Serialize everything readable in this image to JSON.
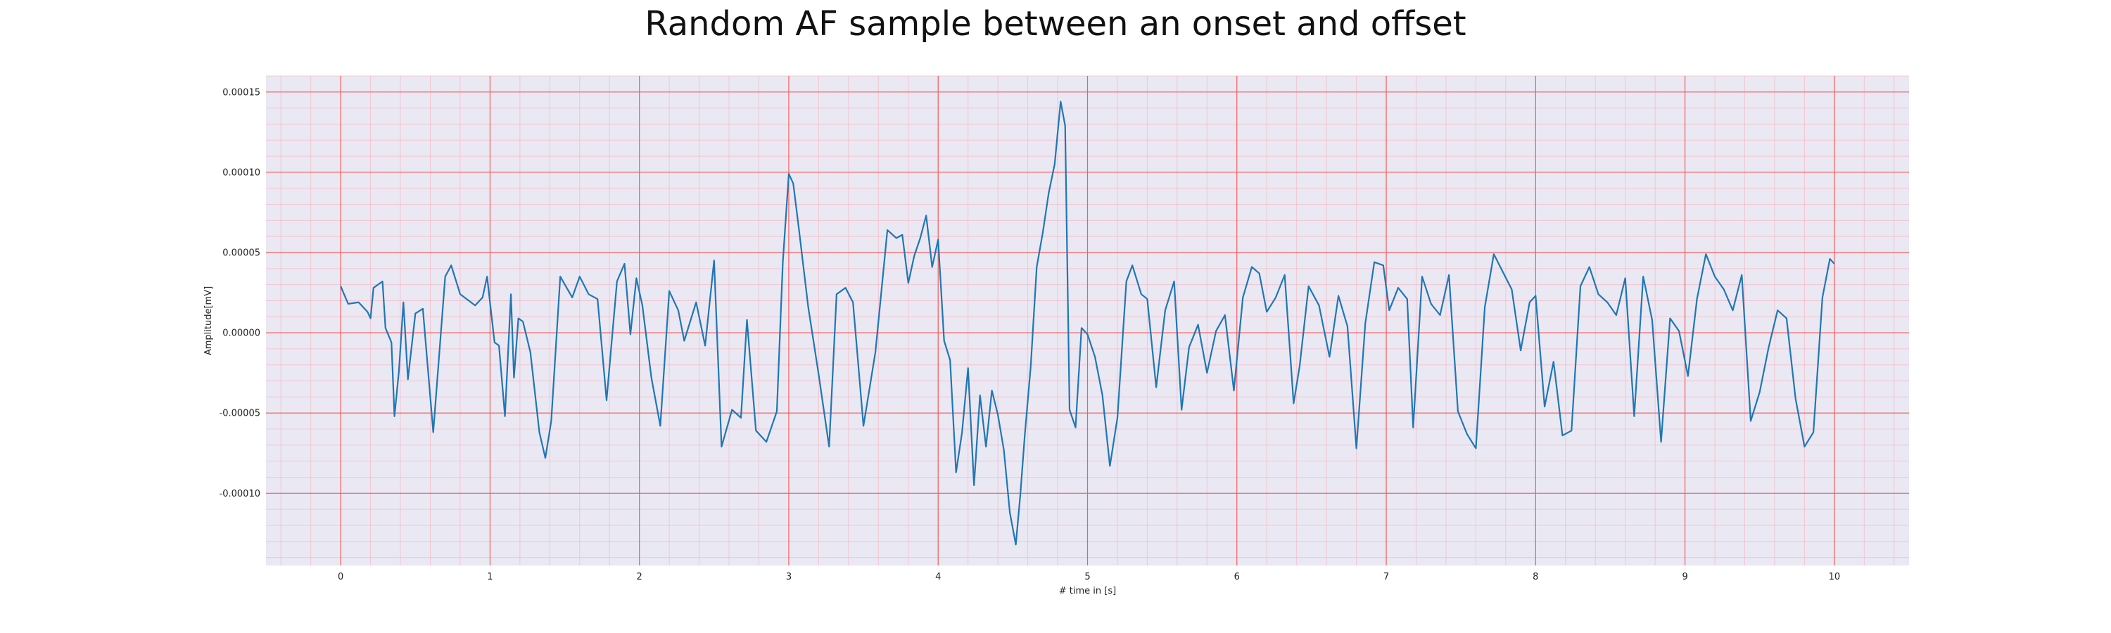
{
  "chart_data": {
    "type": "line",
    "title": "Random AF sample between an onset and offset",
    "xlabel": "# time in [s]",
    "ylabel": "Amplitude[mV]",
    "xlim": [
      -0.5,
      10.5
    ],
    "ylim": [
      -0.000145,
      0.00016
    ],
    "x_ticks": [
      0,
      1,
      2,
      3,
      4,
      5,
      6,
      7,
      8,
      9,
      10
    ],
    "x_tick_labels": [
      "0",
      "1",
      "2",
      "3",
      "4",
      "5",
      "6",
      "7",
      "8",
      "9",
      "10"
    ],
    "y_ticks": [
      -0.0001,
      -5e-05,
      0,
      5e-05,
      0.0001,
      0.00015
    ],
    "y_tick_labels": [
      "-0.00010",
      "-0.00005",
      "0.00000",
      "0.00005",
      "0.00010",
      "0.00015"
    ],
    "grid": true,
    "minor_grid": true,
    "colors": {
      "plot_background": "#eae8f3",
      "major_grid": "#f06060",
      "minor_grid": "#f5b8c4",
      "line": "#1f77b4"
    },
    "series": [
      {
        "x": [
          0.0,
          0.05,
          0.12,
          0.18,
          0.2,
          0.22,
          0.28,
          0.3,
          0.34,
          0.36,
          0.39,
          0.42,
          0.45,
          0.5,
          0.55,
          0.62,
          0.7,
          0.74,
          0.8,
          0.9,
          0.95,
          0.98,
          1.03,
          1.06,
          1.1,
          1.14,
          1.16,
          1.19,
          1.22,
          1.27,
          1.33,
          1.37,
          1.41,
          1.47,
          1.55,
          1.6,
          1.66,
          1.72,
          1.78,
          1.85,
          1.9,
          1.94,
          1.98,
          2.02,
          2.08,
          2.14,
          2.2,
          2.26,
          2.3,
          2.38,
          2.44,
          2.5,
          2.55,
          2.62,
          2.68,
          2.72,
          2.78,
          2.85,
          2.92,
          2.96,
          3.0,
          3.03,
          3.07,
          3.13,
          3.2,
          3.27,
          3.32,
          3.38,
          3.43,
          3.5,
          3.58,
          3.66,
          3.72,
          3.76,
          3.8,
          3.84,
          3.88,
          3.92,
          3.96,
          4.0,
          4.04,
          4.08,
          4.12,
          4.16,
          4.2,
          4.24,
          4.28,
          4.32,
          4.36,
          4.4,
          4.44,
          4.48,
          4.52,
          4.55,
          4.58,
          4.62,
          4.66,
          4.7,
          4.74,
          4.78,
          4.82,
          4.85,
          4.88,
          4.92,
          4.96,
          5.0,
          5.05,
          5.1,
          5.15,
          5.2,
          5.26,
          5.3,
          5.36,
          5.4,
          5.46,
          5.52,
          5.58,
          5.63,
          5.68,
          5.74,
          5.8,
          5.86,
          5.92,
          5.98,
          6.04,
          6.1,
          6.15,
          6.2,
          6.26,
          6.32,
          6.38,
          6.42,
          6.48,
          6.55,
          6.62,
          6.68,
          6.74,
          6.8,
          6.86,
          6.92,
          6.98,
          7.02,
          7.08,
          7.14,
          7.18,
          7.24,
          7.3,
          7.36,
          7.42,
          7.48,
          7.54,
          7.6,
          7.66,
          7.72,
          7.78,
          7.84,
          7.9,
          7.96,
          8.0,
          8.06,
          8.12,
          8.18,
          8.24,
          8.3,
          8.36,
          8.42,
          8.48,
          8.54,
          8.6,
          8.66,
          8.72,
          8.78,
          8.84,
          8.9,
          8.96,
          9.02,
          9.08,
          9.14,
          9.2,
          9.26,
          9.32,
          9.38,
          9.44,
          9.5,
          9.56,
          9.62,
          9.68,
          9.74,
          9.8,
          9.86,
          9.92,
          9.97,
          10.0
        ],
        "y": [
          2.9e-05,
          1.8e-05,
          1.9e-05,
          1.3e-05,
          9e-06,
          2.8e-05,
          3.2e-05,
          3e-06,
          -6e-06,
          -5.2e-05,
          -2.4e-05,
          1.9e-05,
          -2.9e-05,
          1.2e-05,
          1.5e-05,
          -6.2e-05,
          3.5e-05,
          4.2e-05,
          2.4e-05,
          1.7e-05,
          2.2e-05,
          3.5e-05,
          -6e-06,
          -8e-06,
          -5.2e-05,
          2.4e-05,
          -2.8e-05,
          9e-06,
          7e-06,
          -1.2e-05,
          -6.2e-05,
          -7.8e-05,
          -5.5e-05,
          3.5e-05,
          2.2e-05,
          3.5e-05,
          2.4e-05,
          2.1e-05,
          -4.2e-05,
          3.2e-05,
          4.3e-05,
          -1e-06,
          3.4e-05,
          1.7e-05,
          -2.8e-05,
          -5.8e-05,
          2.6e-05,
          1.4e-05,
          -5e-06,
          1.9e-05,
          -8e-06,
          4.5e-05,
          -7.1e-05,
          -4.8e-05,
          -5.3e-05,
          8e-06,
          -6.1e-05,
          -6.8e-05,
          -4.9e-05,
          4.4e-05,
          9.9e-05,
          9.3e-05,
          6.3e-05,
          1.6e-05,
          -2.6e-05,
          -7.1e-05,
          2.4e-05,
          2.8e-05,
          1.9e-05,
          -5.8e-05,
          -1.2e-05,
          6.4e-05,
          5.9e-05,
          6.1e-05,
          3.1e-05,
          4.8e-05,
          5.9e-05,
          7.3e-05,
          4.1e-05,
          5.8e-05,
          -5e-06,
          -1.7e-05,
          -8.7e-05,
          -6.2e-05,
          -2.2e-05,
          -9.5e-05,
          -3.9e-05,
          -7.1e-05,
          -3.6e-05,
          -5.1e-05,
          -7.3e-05,
          -0.000112,
          -0.000132,
          -0.000101,
          -6.4e-05,
          -2.1e-05,
          4.1e-05,
          6.2e-05,
          8.7e-05,
          0.000105,
          0.000144,
          0.000129,
          -4.8e-05,
          -5.9e-05,
          3e-06,
          -1e-06,
          -1.5e-05,
          -3.9e-05,
          -8.3e-05,
          -5.3e-05,
          3.2e-05,
          4.2e-05,
          2.4e-05,
          2.1e-05,
          -3.4e-05,
          1.4e-05,
          3.2e-05,
          -4.8e-05,
          -9e-06,
          5e-06,
          -2.5e-05,
          1e-06,
          1.1e-05,
          -3.6e-05,
          2.2e-05,
          4.1e-05,
          3.7e-05,
          1.3e-05,
          2.2e-05,
          3.6e-05,
          -4.4e-05,
          -2.1e-05,
          2.9e-05,
          1.7e-05,
          -1.5e-05,
          2.3e-05,
          4e-06,
          -7.2e-05,
          6e-06,
          4.4e-05,
          4.2e-05,
          1.4e-05,
          2.8e-05,
          2.1e-05,
          -5.9e-05,
          3.5e-05,
          1.8e-05,
          1.1e-05,
          3.6e-05,
          -4.9e-05,
          -6.3e-05,
          -7.2e-05,
          1.6e-05,
          4.9e-05,
          3.8e-05,
          2.7e-05,
          -1.1e-05,
          1.9e-05,
          2.3e-05,
          -4.6e-05,
          -1.8e-05,
          -6.4e-05,
          -6.1e-05,
          2.9e-05,
          4.1e-05,
          2.4e-05,
          1.9e-05,
          1.1e-05,
          3.4e-05,
          -5.2e-05,
          3.5e-05,
          8e-06,
          -6.8e-05,
          9e-06,
          1e-06,
          -2.7e-05,
          2.1e-05,
          4.9e-05,
          3.5e-05,
          2.7e-05,
          1.4e-05,
          3.6e-05,
          -5.5e-05,
          -3.7e-05,
          -9e-06,
          1.4e-05,
          9e-06,
          -4.1e-05,
          -7.1e-05,
          -6.2e-05,
          2.2e-05,
          4.6e-05,
          4.3e-05
        ]
      }
    ]
  }
}
